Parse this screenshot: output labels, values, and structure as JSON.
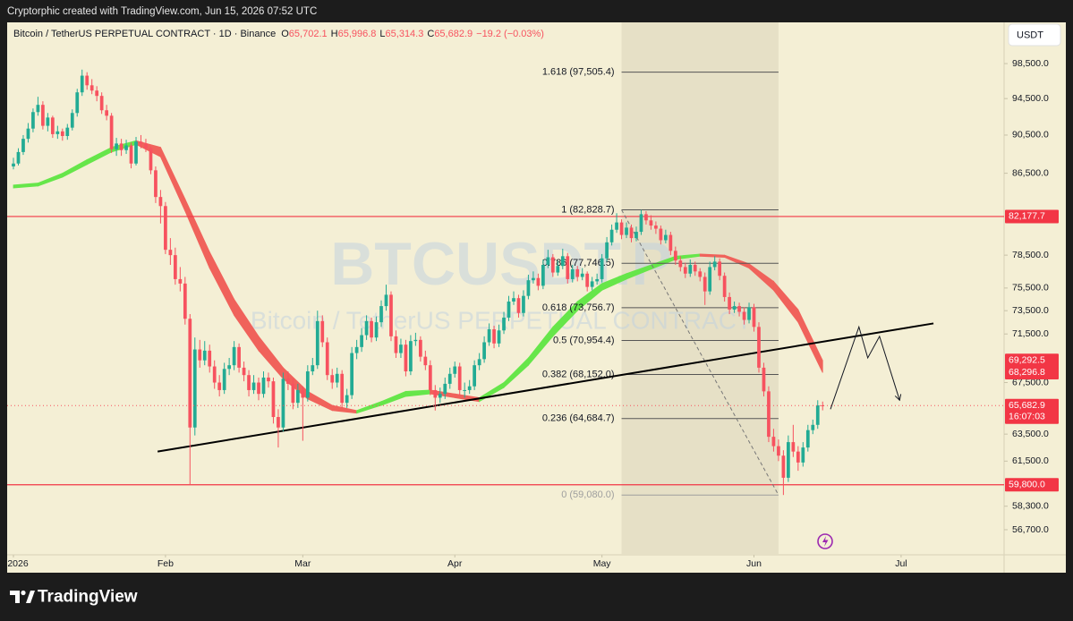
{
  "page": {
    "top_note": "Cryptorphic created with TradingView.com, Jun 15, 2026 07:52 UTC",
    "brand": "TradingView",
    "currency_button": "USDT"
  },
  "chart_data": {
    "type": "candlestick",
    "legend": {
      "symbol": "Bitcoin / TetherUS PERPETUAL CONTRACT · 1D · Binance",
      "items": [
        {
          "key": "O",
          "value": "65,702.1"
        },
        {
          "key": "H",
          "value": "65,996.8"
        },
        {
          "key": "L",
          "value": "65,314.3"
        },
        {
          "key": "C",
          "value": "65,682.9"
        }
      ],
      "change": "−19.2 (−0.03%)"
    },
    "watermark": {
      "title": "BTCUSDT.P",
      "subtitle": "Bitcoin / TetherUS PERPETUAL CONTRACT"
    },
    "log_scale": true,
    "grid": false,
    "ylim": [
      55040,
      103430
    ],
    "yticks": [
      {
        "value": 98500,
        "label": "98,500.0"
      },
      {
        "value": 94500,
        "label": "94,500.0"
      },
      {
        "value": 90500,
        "label": "90,500.0"
      },
      {
        "value": 86500,
        "label": "86,500.0"
      },
      {
        "value": 78500,
        "label": "78,500.0"
      },
      {
        "value": 75500,
        "label": "75,500.0"
      },
      {
        "value": 73500,
        "label": "73,500.0"
      },
      {
        "value": 71500,
        "label": "71,500.0"
      },
      {
        "value": 67500,
        "label": "67,500.0"
      },
      {
        "value": 63500,
        "label": "63,500.0"
      },
      {
        "value": 61500,
        "label": "61,500.0"
      },
      {
        "value": 58300,
        "label": "58,300.0"
      },
      {
        "value": 56700,
        "label": "56,700.0"
      }
    ],
    "xlim": [
      -1.28,
      202
    ],
    "xticks": [
      {
        "value": 0,
        "label": "2026"
      },
      {
        "value": 31,
        "label": "Feb"
      },
      {
        "value": 59,
        "label": "Mar"
      },
      {
        "value": 90,
        "label": "Apr"
      },
      {
        "value": 120,
        "label": "May"
      },
      {
        "value": 151,
        "label": "Jun"
      },
      {
        "value": 181,
        "label": "Jul"
      }
    ],
    "up_color": "#22ab94",
    "down_color": "#f7525f",
    "candles": [
      [
        87200,
        88100,
        86900,
        87500
      ],
      [
        87500,
        89100,
        87300,
        88700
      ],
      [
        88700,
        90500,
        88400,
        90100
      ],
      [
        90100,
        91800,
        89700,
        91200
      ],
      [
        91200,
        93400,
        90800,
        93000
      ],
      [
        93000,
        94700,
        92600,
        93800
      ],
      [
        93800,
        94200,
        91100,
        91500
      ],
      [
        91500,
        92900,
        90900,
        92400
      ],
      [
        92400,
        92600,
        90200,
        90600
      ],
      [
        90600,
        91500,
        90100,
        90900
      ],
      [
        90900,
        91200,
        89900,
        90400
      ],
      [
        90400,
        91700,
        90000,
        91300
      ],
      [
        91300,
        93300,
        91000,
        92900
      ],
      [
        92900,
        95600,
        92500,
        95200
      ],
      [
        95200,
        97800,
        94800,
        97100
      ],
      [
        97100,
        97500,
        95500,
        96000
      ],
      [
        96000,
        96700,
        95000,
        95400
      ],
      [
        95400,
        95900,
        94200,
        94800
      ],
      [
        94800,
        95200,
        92800,
        93200
      ],
      [
        93200,
        93800,
        92100,
        92600
      ],
      [
        92600,
        92900,
        88600,
        89000
      ],
      [
        89000,
        90200,
        88300,
        89600
      ],
      [
        89600,
        90100,
        88300,
        88900
      ],
      [
        88900,
        90000,
        88500,
        89400
      ],
      [
        89400,
        89700,
        87000,
        87500
      ],
      [
        87500,
        90300,
        87300,
        89800
      ],
      [
        89800,
        90500,
        89100,
        89600
      ],
      [
        89600,
        90100,
        88700,
        89100
      ],
      [
        89100,
        89300,
        86400,
        86800
      ],
      [
        86800,
        87200,
        83500,
        84100
      ],
      [
        84100,
        84800,
        81500,
        83200
      ],
      [
        83200,
        83600,
        78600,
        79000
      ],
      [
        79000,
        80100,
        77600,
        78500
      ],
      [
        78500,
        79200,
        75800,
        76300
      ],
      [
        76300,
        77400,
        75200,
        75900
      ],
      [
        75900,
        76500,
        72300,
        72800
      ],
      [
        72800,
        73200,
        59800,
        64000
      ],
      [
        64000,
        71200,
        63400,
        70200
      ],
      [
        70200,
        71000,
        68700,
        69300
      ],
      [
        69300,
        70900,
        68900,
        70100
      ],
      [
        70100,
        70600,
        68300,
        68800
      ],
      [
        68800,
        69300,
        67000,
        67500
      ],
      [
        67500,
        68100,
        66400,
        66900
      ],
      [
        66900,
        69100,
        66600,
        68600
      ],
      [
        68600,
        69500,
        68100,
        68900
      ],
      [
        68900,
        70900,
        68500,
        70400
      ],
      [
        70400,
        70700,
        68300,
        68700
      ],
      [
        68700,
        69200,
        67600,
        68100
      ],
      [
        68100,
        68500,
        66400,
        66900
      ],
      [
        66900,
        68100,
        66600,
        67500
      ],
      [
        67500,
        67900,
        66100,
        66600
      ],
      [
        66600,
        68400,
        66300,
        67900
      ],
      [
        67900,
        68300,
        67100,
        67600
      ],
      [
        67600,
        67900,
        64300,
        64800
      ],
      [
        64800,
        65400,
        62500,
        64000
      ],
      [
        64000,
        68300,
        63700,
        67800
      ],
      [
        67800,
        68400,
        66900,
        67400
      ],
      [
        67400,
        67800,
        65400,
        65900
      ],
      [
        65900,
        67400,
        65500,
        66900
      ],
      [
        66900,
        67200,
        63000,
        66300
      ],
      [
        66300,
        68900,
        66000,
        68400
      ],
      [
        68400,
        69500,
        68100,
        68900
      ],
      [
        68900,
        73500,
        68600,
        72600
      ],
      [
        72600,
        73100,
        70400,
        70800
      ],
      [
        70800,
        71200,
        67700,
        68100
      ],
      [
        68100,
        68600,
        67000,
        67500
      ],
      [
        67500,
        68700,
        67100,
        68200
      ],
      [
        68200,
        68500,
        65500,
        65900
      ],
      [
        65900,
        67000,
        65500,
        66500
      ],
      [
        66500,
        70400,
        66200,
        69900
      ],
      [
        69900,
        71000,
        69400,
        70400
      ],
      [
        70400,
        72000,
        70000,
        71400
      ],
      [
        71400,
        73100,
        71000,
        72600
      ],
      [
        72600,
        72900,
        70800,
        71200
      ],
      [
        71200,
        73000,
        70900,
        72500
      ],
      [
        72500,
        74400,
        72100,
        73900
      ],
      [
        73900,
        75800,
        73500,
        74900
      ],
      [
        74900,
        75200,
        70900,
        71300
      ],
      [
        71300,
        71800,
        69500,
        69900
      ],
      [
        69900,
        71100,
        69500,
        70600
      ],
      [
        70600,
        71000,
        68000,
        68400
      ],
      [
        68400,
        71400,
        68100,
        70900
      ],
      [
        70900,
        71600,
        70500,
        71000
      ],
      [
        71000,
        71300,
        69200,
        69600
      ],
      [
        69600,
        70100,
        68500,
        68900
      ],
      [
        68900,
        69300,
        66500,
        66900
      ],
      [
        66900,
        67300,
        65300,
        66300
      ],
      [
        66300,
        67100,
        65900,
        66600
      ],
      [
        66600,
        67900,
        66200,
        67400
      ],
      [
        67400,
        68700,
        67000,
        68200
      ],
      [
        68200,
        69200,
        67900,
        68800
      ],
      [
        68800,
        69100,
        66500,
        66900
      ],
      [
        66900,
        67500,
        66300,
        66900
      ],
      [
        66900,
        67700,
        66600,
        67200
      ],
      [
        67200,
        69300,
        66900,
        68900
      ],
      [
        68900,
        69900,
        68500,
        69400
      ],
      [
        69400,
        71300,
        69100,
        70800
      ],
      [
        70800,
        72400,
        70500,
        71900
      ],
      [
        71900,
        72200,
        70300,
        70700
      ],
      [
        70700,
        72300,
        70400,
        71800
      ],
      [
        71800,
        73400,
        71500,
        72900
      ],
      [
        72900,
        74800,
        72600,
        74300
      ],
      [
        74300,
        75200,
        74000,
        74600
      ],
      [
        74600,
        74900,
        72900,
        73300
      ],
      [
        73300,
        75300,
        73000,
        74800
      ],
      [
        74800,
        76700,
        74500,
        76200
      ],
      [
        76200,
        77000,
        75900,
        76400
      ],
      [
        76400,
        76800,
        75300,
        75700
      ],
      [
        75700,
        78100,
        75400,
        77600
      ],
      [
        77600,
        79000,
        77300,
        78300
      ],
      [
        78300,
        78600,
        76500,
        76900
      ],
      [
        76900,
        78000,
        76600,
        77500
      ],
      [
        77500,
        79100,
        77200,
        78400
      ],
      [
        78400,
        78700,
        75900,
        76300
      ],
      [
        76300,
        77600,
        76000,
        77200
      ],
      [
        77200,
        77500,
        76100,
        76500
      ],
      [
        76500,
        77300,
        76200,
        76800
      ],
      [
        76800,
        77000,
        75200,
        75600
      ],
      [
        75600,
        76500,
        75300,
        76100
      ],
      [
        76100,
        76800,
        75800,
        76300
      ],
      [
        76300,
        78600,
        76000,
        78200
      ],
      [
        78200,
        80200,
        77900,
        79700
      ],
      [
        79700,
        81400,
        79400,
        80900
      ],
      [
        80900,
        82500,
        80600,
        81600
      ],
      [
        81600,
        81900,
        80000,
        80400
      ],
      [
        80400,
        81600,
        80100,
        81100
      ],
      [
        81100,
        81400,
        79700,
        80100
      ],
      [
        80100,
        81200,
        79800,
        80700
      ],
      [
        80700,
        82828.7,
        80400,
        82400
      ],
      [
        82400,
        82700,
        81400,
        81800
      ],
      [
        81800,
        82300,
        80900,
        81300
      ],
      [
        81300,
        81700,
        80500,
        81000
      ],
      [
        81000,
        81300,
        79500,
        79900
      ],
      [
        79900,
        80900,
        79600,
        80400
      ],
      [
        80400,
        80700,
        78500,
        78900
      ],
      [
        78900,
        79300,
        77600,
        78000
      ],
      [
        78000,
        78400,
        77000,
        77400
      ],
      [
        77400,
        77800,
        76400,
        76800
      ],
      [
        76800,
        78100,
        76500,
        77600
      ],
      [
        77600,
        77900,
        76600,
        77000
      ],
      [
        77000,
        77300,
        76100,
        76500
      ],
      [
        76500,
        76900,
        74000,
        75200
      ],
      [
        75200,
        77900,
        74900,
        77400
      ],
      [
        77400,
        78400,
        77100,
        77900
      ],
      [
        77900,
        78200,
        76200,
        76600
      ],
      [
        76600,
        76900,
        74300,
        74700
      ],
      [
        74700,
        75100,
        73200,
        73600
      ],
      [
        73600,
        74300,
        73300,
        73900
      ],
      [
        73900,
        74200,
        73000,
        73400
      ],
      [
        73400,
        73800,
        72300,
        72700
      ],
      [
        72700,
        74200,
        72400,
        73800
      ],
      [
        73800,
        74100,
        71700,
        72100
      ],
      [
        72100,
        72500,
        68300,
        68700
      ],
      [
        68700,
        69100,
        66400,
        66800
      ],
      [
        66800,
        67200,
        62900,
        63300
      ],
      [
        63300,
        63900,
        62200,
        62600
      ],
      [
        62600,
        63100,
        61500,
        61900
      ],
      [
        61900,
        62300,
        59080,
        60300
      ],
      [
        60300,
        63400,
        60000,
        62900
      ],
      [
        62900,
        64200,
        61800,
        62200
      ],
      [
        62200,
        62600,
        60800,
        61400
      ],
      [
        61400,
        62900,
        61100,
        62500
      ],
      [
        62500,
        64200,
        62200,
        63800
      ],
      [
        63800,
        64600,
        63500,
        64200
      ],
      [
        64200,
        66100,
        63900,
        65700
      ],
      [
        65702.1,
        65996.8,
        65314.3,
        65682.9
      ]
    ],
    "last_label": "65,682.9",
    "countdown": "16:07:03",
    "ribbon": {
      "rise_color": "#66e64a",
      "fall_color": "#f0625b",
      "x": [
        0,
        5,
        10,
        15,
        20,
        25,
        30,
        35,
        40,
        45,
        50,
        55,
        60,
        65,
        70,
        75,
        80,
        85,
        90,
        95,
        100,
        105,
        110,
        115,
        120,
        125,
        130,
        135,
        140,
        145,
        150,
        155,
        160,
        165
      ],
      "upper": [
        85300,
        85500,
        86500,
        87900,
        89200,
        89900,
        89200,
        83900,
        78800,
        74500,
        71300,
        68700,
        66800,
        65700,
        65300,
        66000,
        66800,
        66900,
        66600,
        66300,
        67500,
        69500,
        72100,
        74300,
        75900,
        76800,
        77600,
        78400,
        78600,
        78500,
        77700,
        76100,
        73600,
        69292.5
      ],
      "lower": [
        85000,
        85200,
        86100,
        87400,
        88700,
        89500,
        88200,
        82700,
        77300,
        73100,
        70100,
        67800,
        66200,
        65300,
        65100,
        65700,
        66400,
        66600,
        66300,
        66000,
        67100,
        68900,
        71300,
        73500,
        75300,
        76300,
        77200,
        78100,
        78400,
        78300,
        77300,
        75300,
        72500,
        68296.8
      ],
      "upper_label": "69,292.5",
      "lower_label": "68,296.8"
    },
    "hlines": {
      "color": "#f23645",
      "levels": [
        {
          "value": 82177.7,
          "label": "82,177.7"
        },
        {
          "value": 59800,
          "label": "59,800.0"
        }
      ]
    },
    "trendline": {
      "color": "#000000",
      "x": [
        29.4,
        187.6
      ],
      "values": [
        62200,
        72400
      ]
    },
    "projection": {
      "x": [
        166.6,
        172.4,
        174.2,
        176.6,
        180.7
      ],
      "values": [
        65400,
        72100,
        69500,
        71300,
        66100
      ]
    },
    "fib": {
      "x": [
        124,
        156
      ],
      "levels": [
        {
          "value": 97505.4,
          "label": "1.618 (97,505.4)"
        },
        {
          "value": 82828.7,
          "label": "1 (82,828.7)"
        },
        {
          "value": 77746.5,
          "label": "0.786 (77,746.5)"
        },
        {
          "value": 73756.7,
          "label": "0.618 (73,756.7)"
        },
        {
          "value": 70954.4,
          "label": "0.5 (70,954.4)"
        },
        {
          "value": 68152.0,
          "label": "0.382 (68,152.0)"
        },
        {
          "value": 64684.7,
          "label": "0.236 (64,684.7)"
        },
        {
          "value": 59080.0,
          "label": "0 (59,080.0)"
        }
      ]
    }
  }
}
